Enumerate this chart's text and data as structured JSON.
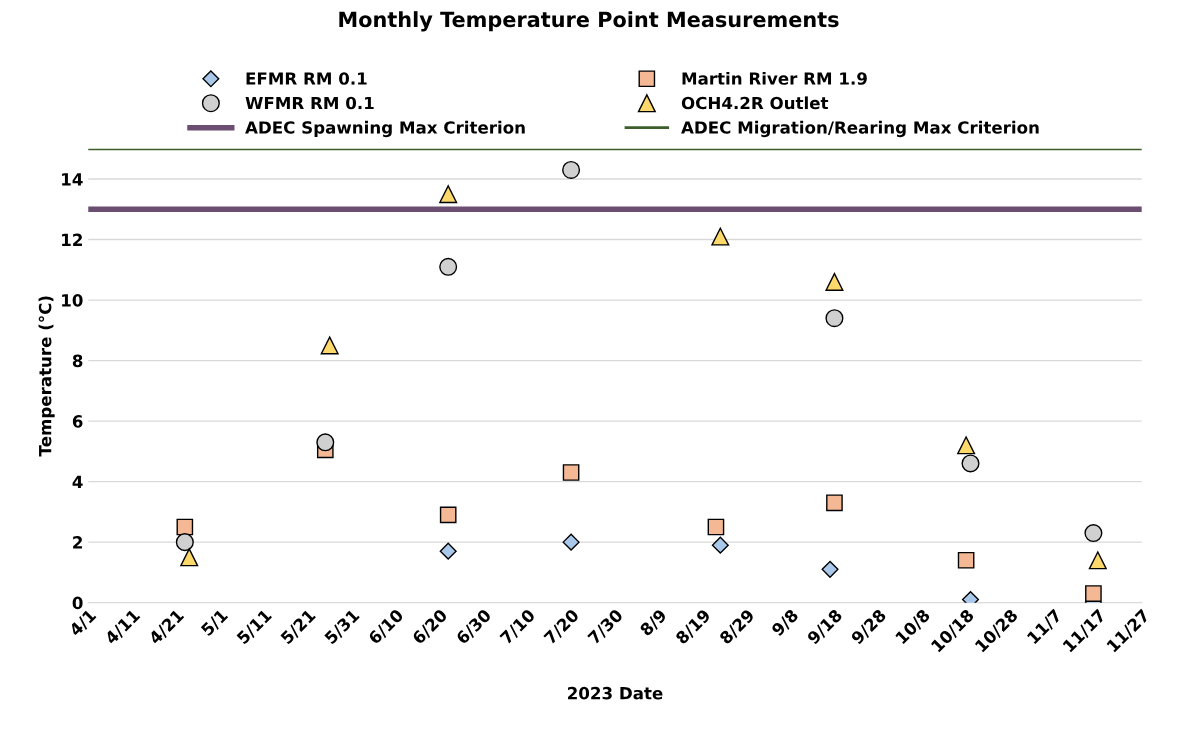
{
  "chart_data": {
    "type": "scatter",
    "title": "Monthly Temperature Point Measurements",
    "xlabel": "2023 Date",
    "ylabel": "Temperature (°C)",
    "series": [
      {
        "name": "EFMR RM 0.1",
        "color": "#a9c8ea",
        "marker": "diamond",
        "x": [
          "2023-06-22",
          "2023-07-20",
          "2023-08-23",
          "2023-09-17",
          "2023-10-19",
          "2023-11-16"
        ],
        "values": [
          1.7,
          2.0,
          1.9,
          1.1,
          0.1,
          0.0
        ]
      },
      {
        "name": "Martin River RM 1.9",
        "color": "#f4b994",
        "marker": "square",
        "x": [
          "2023-04-23",
          "2023-05-25",
          "2023-06-22",
          "2023-07-20",
          "2023-08-22",
          "2023-09-18",
          "2023-10-18",
          "2023-11-16"
        ],
        "values": [
          2.5,
          5.05,
          2.9,
          4.3,
          2.5,
          3.3,
          1.4,
          0.3
        ]
      },
      {
        "name": "WFMR RM 0.1",
        "color": "#d0d0d0",
        "marker": "circle",
        "x": [
          "2023-04-23",
          "2023-05-25",
          "2023-06-22",
          "2023-07-20",
          "2023-09-18",
          "2023-10-19",
          "2023-11-16"
        ],
        "values": [
          2.0,
          5.3,
          11.1,
          14.3,
          9.4,
          4.6,
          2.3
        ]
      },
      {
        "name": "OCH4.2R Outlet",
        "color": "#fdd86b",
        "marker": "triangle",
        "x": [
          "2023-04-24",
          "2023-05-26",
          "2023-06-22",
          "2023-08-23",
          "2023-09-18",
          "2023-10-18",
          "2023-11-17"
        ],
        "values": [
          1.5,
          8.5,
          13.5,
          12.1,
          10.6,
          5.2,
          1.4
        ]
      }
    ],
    "ref_lines": [
      {
        "axis": "y",
        "value": 13,
        "label": "ADEC Spawning Max Criterion",
        "color": "#6b4e71",
        "line_style": "solid"
      },
      {
        "axis": "y",
        "value": 15,
        "label": "ADEC Migration/Rearing Max Criterion",
        "color": "#3b5e2b",
        "line_style": "solid"
      }
    ],
    "xlim": [
      "2023-04-01",
      "2023-11-27"
    ],
    "xticks": [
      {
        "value": "2023-04-01",
        "label": "4/1"
      },
      {
        "value": "2023-04-11",
        "label": "4/11"
      },
      {
        "value": "2023-04-21",
        "label": "4/21"
      },
      {
        "value": "2023-05-01",
        "label": "5/1"
      },
      {
        "value": "2023-05-11",
        "label": "5/11"
      },
      {
        "value": "2023-05-21",
        "label": "5/21"
      },
      {
        "value": "2023-05-31",
        "label": "5/31"
      },
      {
        "value": "2023-06-10",
        "label": "6/10"
      },
      {
        "value": "2023-06-20",
        "label": "6/20"
      },
      {
        "value": "2023-06-30",
        "label": "6/30"
      },
      {
        "value": "2023-07-10",
        "label": "7/10"
      },
      {
        "value": "2023-07-20",
        "label": "7/20"
      },
      {
        "value": "2023-07-30",
        "label": "7/30"
      },
      {
        "value": "2023-08-09",
        "label": "8/9"
      },
      {
        "value": "2023-08-19",
        "label": "8/19"
      },
      {
        "value": "2023-08-29",
        "label": "8/29"
      },
      {
        "value": "2023-09-08",
        "label": "9/8"
      },
      {
        "value": "2023-09-18",
        "label": "9/18"
      },
      {
        "value": "2023-09-28",
        "label": "9/28"
      },
      {
        "value": "2023-10-08",
        "label": "10/8"
      },
      {
        "value": "2023-10-18",
        "label": "10/18"
      },
      {
        "value": "2023-10-28",
        "label": "10/28"
      },
      {
        "value": "2023-11-07",
        "label": "11/7"
      },
      {
        "value": "2023-11-17",
        "label": "11/17"
      },
      {
        "value": "2023-11-27",
        "label": "11/27"
      }
    ],
    "ylim": [
      0,
      15
    ],
    "yticks": [
      0,
      2,
      4,
      6,
      8,
      10,
      12,
      14
    ],
    "grid": "y",
    "legend": "top"
  }
}
